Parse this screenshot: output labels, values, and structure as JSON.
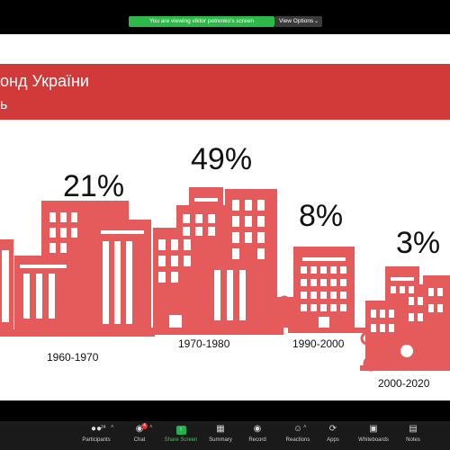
{
  "banner": {
    "text": "You are viewing viktor petrenko's screen"
  },
  "view_options": {
    "label": "View Options",
    "chevron": "chevron-down-icon"
  },
  "slide": {
    "title": "онд України",
    "subtitle": "ь",
    "colors": {
      "header": "#d23a3a",
      "buildings": "#e55a5a"
    },
    "groups": [
      {
        "percent": "21%",
        "period": "1960-1970"
      },
      {
        "percent": "49%",
        "period": "1970-1980"
      },
      {
        "percent": "8%",
        "period": "1990-2000"
      },
      {
        "percent": "3%",
        "period": "2000-2020"
      }
    ]
  },
  "toolbar": {
    "participants": {
      "label": "Participants",
      "count": "24",
      "icon": "participants-icon"
    },
    "chat": {
      "label": "Chat",
      "badge": "4",
      "icon": "chat-icon"
    },
    "share": {
      "label": "Share Screen",
      "icon": "share-screen-icon"
    },
    "summary": {
      "label": "Summary",
      "icon": "summary-icon"
    },
    "record": {
      "label": "Record",
      "icon": "record-icon"
    },
    "reactions": {
      "label": "Reactions",
      "icon": "reactions-icon"
    },
    "apps": {
      "label": "Apps",
      "icon": "apps-icon"
    },
    "whiteboards": {
      "label": "Whiteboards",
      "icon": "whiteboards-icon"
    },
    "notes": {
      "label": "Notes",
      "icon": "notes-icon"
    }
  }
}
